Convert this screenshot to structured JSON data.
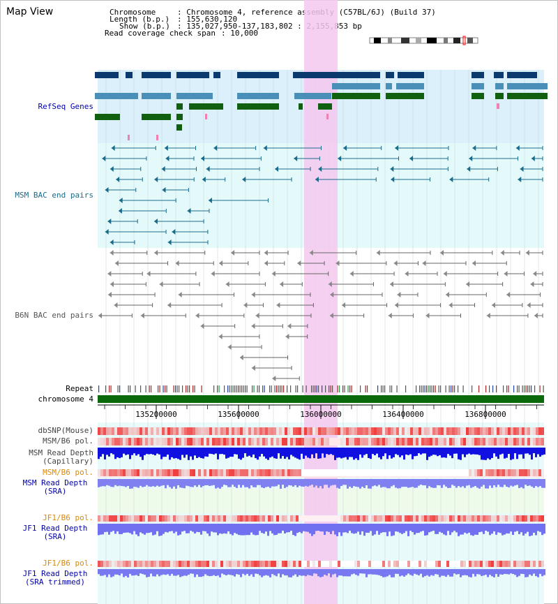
{
  "header": {
    "title": "Map View",
    "chromosome_label": "Chromosome",
    "chromosome_value": ": Chromosome 4, reference assembly (C57BL/6J) (Build 37)",
    "length_label": "Length (b.p.)",
    "length_value": ": 155,630,120",
    "show_label": "Show (b.p.)",
    "show_value": ": 135,027,950-137,183,802 : 2,155,853 bp",
    "span_label": "Read coverage check span",
    "span_value": ": 10,000"
  },
  "tracks": {
    "refseq": "RefSeq Genes",
    "msm_bac": "MSM BAC end pairs",
    "b6n_bac": "B6N BAC end pairs",
    "repeat": "Repeat",
    "chromosome": "chromosome 4",
    "dbsnp": "dbSNP(Mouse)",
    "msm_pol": "MSM/B6 pol.",
    "msm_depth_cap_1": "MSM Read Depth",
    "msm_depth_cap_2": "(Capillary)",
    "msm_pol_sra": "MSM/B6 pol.",
    "msm_depth_sra_1": "MSM Read Depth",
    "msm_depth_sra_2": "(SRA)",
    "jf1_pol_1": "JF1/B6 pol.",
    "jf1_depth_1": "JF1 Read Depth",
    "jf1_depth_2": "(SRA)",
    "jf1_pol_2": "JF1/B6 pol.",
    "jf1_trim_1": "JF1 Read Depth",
    "jf1_trim_2": "(SRA trimmed)"
  },
  "axis": {
    "ticks": [
      "135200000",
      "135600000",
      "136000000",
      "136400000",
      "136800000"
    ]
  },
  "colors": {
    "refseq_dark": "#0a3a6e",
    "refseq_mid": "#4a8fb8",
    "refseq_green": "#106010",
    "msm_bac": "#1a6a8a",
    "b6n_bac": "#666666",
    "highlight": "#f5c8ee",
    "chromosome_bar": "#0a6a0a",
    "label_blue": "#0000aa",
    "label_orange": "#dd8800"
  }
}
